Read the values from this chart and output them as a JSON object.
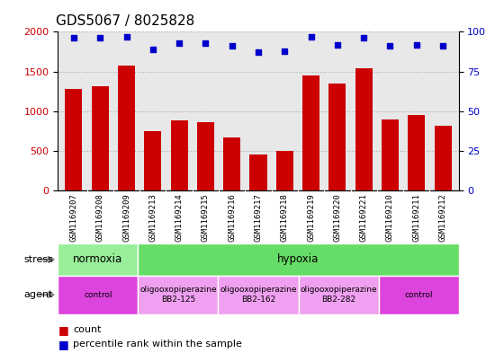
{
  "title": "GDS5067 / 8025828",
  "samples": [
    "GSM1169207",
    "GSM1169208",
    "GSM1169209",
    "GSM1169213",
    "GSM1169214",
    "GSM1169215",
    "GSM1169216",
    "GSM1169217",
    "GSM1169218",
    "GSM1169219",
    "GSM1169220",
    "GSM1169221",
    "GSM1169210",
    "GSM1169211",
    "GSM1169212"
  ],
  "counts": [
    1280,
    1310,
    1570,
    750,
    890,
    860,
    670,
    450,
    500,
    1450,
    1350,
    1540,
    900,
    950,
    820
  ],
  "percentiles": [
    96,
    96,
    97,
    89,
    93,
    93,
    91,
    87,
    88,
    97,
    92,
    96,
    91,
    92,
    91
  ],
  "bar_color": "#cc0000",
  "dot_color": "#0000cc",
  "ylim_left": [
    0,
    2000
  ],
  "ylim_right": [
    0,
    100
  ],
  "yticks_left": [
    0,
    500,
    1000,
    1500,
    2000
  ],
  "yticks_right": [
    0,
    25,
    50,
    75,
    100
  ],
  "stress_labels": [
    {
      "text": "normoxia",
      "start": 0,
      "end": 3,
      "color": "#99ee99"
    },
    {
      "text": "hypoxia",
      "start": 3,
      "end": 15,
      "color": "#66dd66"
    }
  ],
  "agent_labels": [
    {
      "text": "control",
      "start": 0,
      "end": 3,
      "color": "#dd44dd"
    },
    {
      "text": "oligooxopiperazine\nBB2-125",
      "start": 3,
      "end": 6,
      "color": "#f0a0f0"
    },
    {
      "text": "oligooxopiperazine\nBB2-162",
      "start": 6,
      "end": 9,
      "color": "#f0a0f0"
    },
    {
      "text": "oligooxopiperazine\nBB2-282",
      "start": 9,
      "end": 12,
      "color": "#f0a0f0"
    },
    {
      "text": "control",
      "start": 12,
      "end": 15,
      "color": "#dd44dd"
    }
  ],
  "plot_bg": "#e8e8e8",
  "legend_count_color": "#cc0000",
  "legend_dot_color": "#0000cc",
  "background_color": "#ffffff",
  "grid_color": "#aaaaaa"
}
